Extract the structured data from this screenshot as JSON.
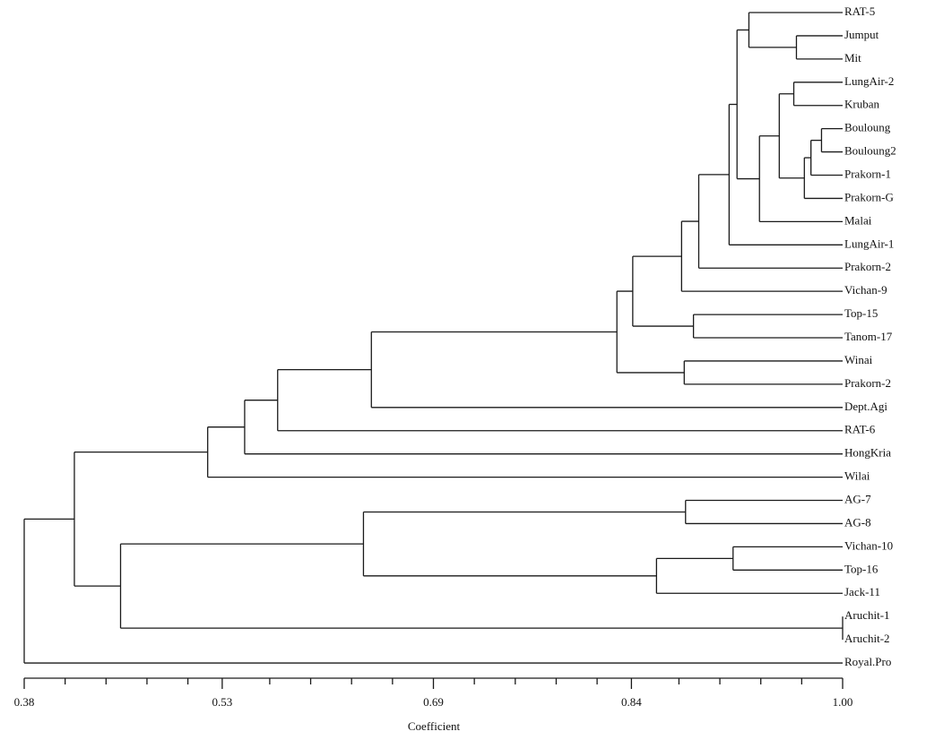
{
  "chart_data": {
    "type": "dendrogram",
    "xlabel": "Coefficient",
    "xlim": [
      0.38,
      1.0
    ],
    "xticks": [
      0.38,
      0.53,
      0.69,
      0.84,
      {
        "value": 1.0,
        "label": "1.00"
      }
    ],
    "xminorticks": [
      0.411,
      0.442,
      0.473,
      0.504,
      0.566,
      0.597,
      0.628,
      0.659,
      0.721,
      0.752,
      0.783,
      0.814,
      0.876,
      0.907,
      0.938,
      0.969
    ],
    "color": "#1a1a1a",
    "tree": {
      "height": 0.38,
      "children": [
        {
          "height": 0.418,
          "children": [
            {
              "height": 0.519,
              "children": [
                {
                  "height": 0.547,
                  "children": [
                    {
                      "height": 0.572,
                      "children": [
                        {
                          "height": 0.643,
                          "children": [
                            {
                              "height": 0.829,
                              "children": [
                                {
                                  "height": 0.841,
                                  "children": [
                                    {
                                      "height": 0.878,
                                      "children": [
                                        {
                                          "height": 0.891,
                                          "children": [
                                            {
                                              "height": 0.914,
                                              "children": [
                                                {
                                                  "height": 0.92,
                                                  "children": [
                                                    {
                                                      "height": 0.929,
                                                      "children": [
                                                        {
                                                          "label": "RAT-5"
                                                        },
                                                        {
                                                          "height": 0.965,
                                                          "children": [
                                                            {
                                                              "label": "Jumput"
                                                            },
                                                            {
                                                              "label": "Mit"
                                                            }
                                                          ]
                                                        }
                                                      ]
                                                    },
                                                    {
                                                      "height": 0.937,
                                                      "children": [
                                                        {
                                                          "height": 0.952,
                                                          "children": [
                                                            {
                                                              "height": 0.963,
                                                              "children": [
                                                                {
                                                                  "label": "LungAir-2"
                                                                },
                                                                {
                                                                  "label": "Kruban"
                                                                }
                                                              ]
                                                            },
                                                            {
                                                              "height": 0.971,
                                                              "children": [
                                                                {
                                                                  "height": 0.976,
                                                                  "children": [
                                                                    {
                                                                      "height": 0.984,
                                                                      "children": [
                                                                        {
                                                                          "label": "Bouloung"
                                                                        },
                                                                        {
                                                                          "label": "Bouloung2"
                                                                        }
                                                                      ]
                                                                    },
                                                                    {
                                                                      "label": "Prakorn-1"
                                                                    }
                                                                  ]
                                                                },
                                                                {
                                                                  "label": "Prakorn-G"
                                                                }
                                                              ]
                                                            }
                                                          ]
                                                        },
                                                        {
                                                          "label": "Malai"
                                                        }
                                                      ]
                                                    }
                                                  ]
                                                },
                                                {
                                                  "label": "LungAir-1"
                                                }
                                              ]
                                            },
                                            {
                                              "label": "Prakorn-2"
                                            }
                                          ]
                                        },
                                        {
                                          "label": "Vichan-9"
                                        }
                                      ]
                                    },
                                    {
                                      "height": 0.887,
                                      "children": [
                                        {
                                          "label": "Top-15"
                                        },
                                        {
                                          "label": "Tanom-17"
                                        }
                                      ]
                                    }
                                  ]
                                },
                                {
                                  "height": 0.88,
                                  "children": [
                                    {
                                      "label": "Winai"
                                    },
                                    {
                                      "label": "Prakorn-2"
                                    }
                                  ]
                                }
                              ]
                            },
                            {
                              "label": "Dept.Agi"
                            }
                          ]
                        },
                        {
                          "label": "RAT-6"
                        }
                      ]
                    },
                    {
                      "label": "HongKria"
                    }
                  ]
                },
                {
                  "label": "Wilai"
                }
              ]
            },
            {
              "height": 0.453,
              "children": [
                {
                  "height": 0.637,
                  "children": [
                    {
                      "height": 0.881,
                      "children": [
                        {
                          "label": "AG-7"
                        },
                        {
                          "label": "AG-8"
                        }
                      ]
                    },
                    {
                      "height": 0.859,
                      "children": [
                        {
                          "height": 0.917,
                          "children": [
                            {
                              "label": "Vichan-10"
                            },
                            {
                              "label": "Top-16"
                            }
                          ]
                        },
                        {
                          "label": "Jack-11"
                        }
                      ]
                    }
                  ]
                },
                {
                  "height": 1.0,
                  "children": [
                    {
                      "label": "Aruchit-1"
                    },
                    {
                      "label": "Aruchit-2"
                    }
                  ]
                }
              ]
            }
          ]
        },
        {
          "label": "Royal.Pro"
        }
      ]
    }
  }
}
